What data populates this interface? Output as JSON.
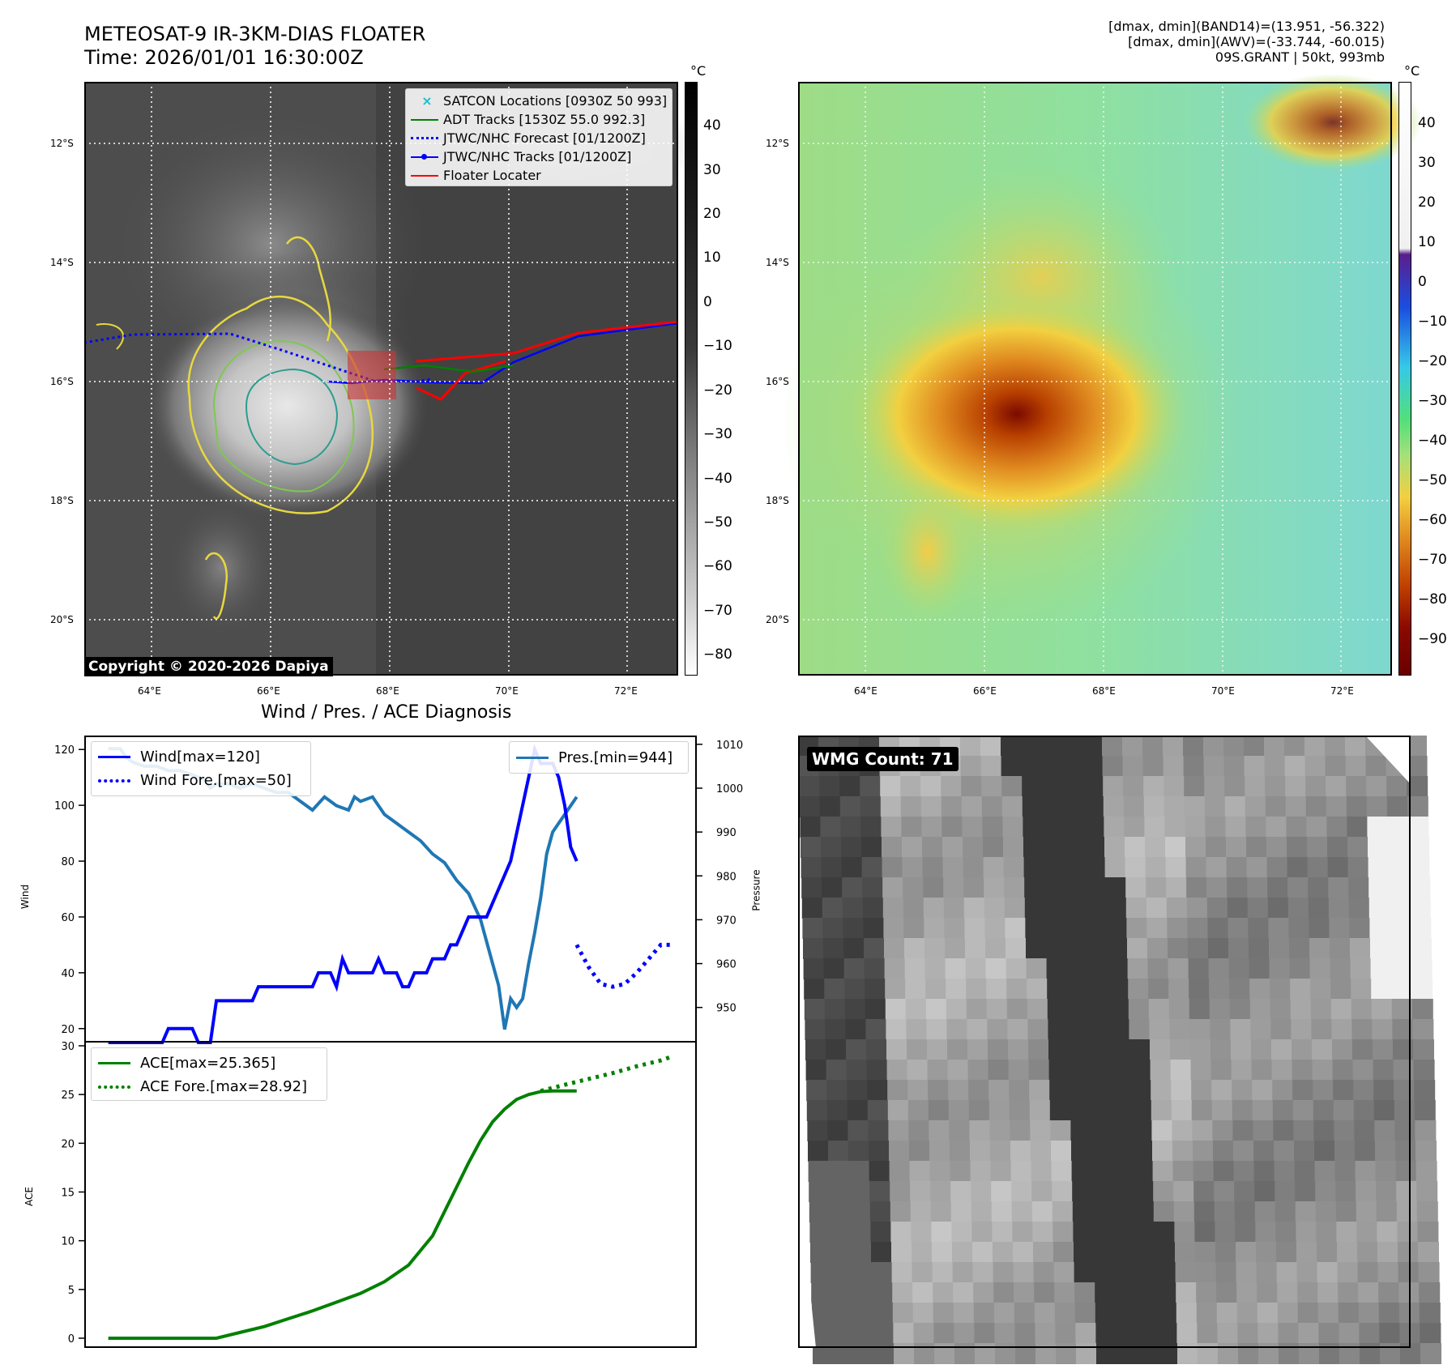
{
  "header": {
    "title_line1": "METEOSAT-9 IR-3KM-DIAS FLOATER",
    "title_line2": "Time: 2026/01/01 16:30:00Z",
    "info_line1": "[dmax, dmin](BAND14)=(13.951, -56.322)",
    "info_line2": "[dmax, dmin](AWV)=(-33.744, -60.015)",
    "info_line3": "09S.GRANT | 50kt, 993mb"
  },
  "map": {
    "lat_labels": [
      "12°S",
      "14°S",
      "16°S",
      "18°S",
      "20°S"
    ],
    "lon_labels": [
      "64°E",
      "66°E",
      "68°E",
      "70°E",
      "72°E"
    ],
    "copyright": "Copyright © 2020-2026 Dapiya",
    "legend": [
      {
        "label": "SATCON Locations [0930Z 50 993]",
        "color": "#17becf",
        "style": "x"
      },
      {
        "label": "ADT Tracks [1530Z 55.0 992.3]",
        "color": "#008000",
        "style": "line"
      },
      {
        "label": "JTWC/NHC Forecast [01/1200Z]",
        "color": "#0000ff",
        "style": "dotted"
      },
      {
        "label": "JTWC/NHC Tracks [01/1200Z]",
        "color": "#0000ff",
        "style": "line-dot"
      },
      {
        "label": "Floater Locater",
        "color": "#ff0000",
        "style": "line"
      }
    ]
  },
  "colorbar_ir": {
    "unit": "°C",
    "ticks": [
      "40",
      "30",
      "20",
      "10",
      "0",
      "−10",
      "−20",
      "−30",
      "−40",
      "−50",
      "−60",
      "−70",
      "−80"
    ]
  },
  "colorbar_wv": {
    "unit": "°C",
    "ticks": [
      "40",
      "30",
      "20",
      "10",
      "0",
      "−10",
      "−20",
      "−30",
      "−40",
      "−50",
      "−60",
      "−70",
      "−80",
      "−90"
    ]
  },
  "diag": {
    "title": "Wind / Pres. / ACE Diagnosis",
    "wind_ylabel": "Wind",
    "pres_ylabel": "Pressure",
    "ace_ylabel": "ACE",
    "wind_legend": [
      "Wind[max=120]",
      "Wind Fore.[max=50]"
    ],
    "pres_legend": "Pres.[min=944]",
    "ace_legend": [
      "ACE[max=25.365]",
      "ACE Fore.[max=28.92]"
    ],
    "wind_ticks": [
      "120",
      "100",
      "80",
      "60",
      "40",
      "20"
    ],
    "pres_ticks": [
      "1010",
      "1000",
      "990",
      "980",
      "970",
      "960",
      "950"
    ],
    "ace_ticks": [
      "30",
      "25",
      "20",
      "15",
      "10",
      "5",
      "0"
    ]
  },
  "wmg": {
    "label": "WMG Count: 71"
  },
  "chart_data": [
    {
      "type": "line",
      "title": "Wind / Pres. / ACE Diagnosis",
      "ylabel": "Wind",
      "ylim": [
        15,
        125
      ],
      "series": [
        {
          "name": "Wind[max=120]",
          "color": "#0000ff",
          "style": "solid",
          "x": [
            0,
            1,
            2,
            3,
            4,
            5,
            6,
            7,
            8,
            9,
            10,
            11,
            12,
            13,
            14,
            15,
            16,
            17,
            18,
            19,
            20,
            21,
            22,
            23,
            24,
            25,
            26,
            27,
            28,
            29,
            30,
            31,
            32,
            33,
            34,
            35,
            36,
            37,
            38,
            39,
            40,
            41,
            42,
            43,
            44,
            45,
            46,
            47,
            48,
            49,
            50,
            51,
            52,
            53,
            54,
            55,
            56,
            57,
            58,
            59,
            60,
            61,
            62,
            63,
            64,
            65,
            66,
            67,
            68,
            69,
            70,
            71,
            72,
            73,
            74,
            75,
            76,
            77,
            78
          ],
          "y": [
            15,
            15,
            15,
            15,
            15,
            15,
            15,
            15,
            15,
            15,
            20,
            20,
            20,
            20,
            20,
            15,
            15,
            15,
            30,
            30,
            30,
            30,
            30,
            30,
            30,
            35,
            35,
            35,
            35,
            35,
            35,
            35,
            35,
            35,
            35,
            40,
            40,
            40,
            35,
            45,
            40,
            40,
            40,
            40,
            40,
            45,
            40,
            40,
            40,
            35,
            35,
            40,
            40,
            40,
            45,
            45,
            45,
            50,
            50,
            55,
            60,
            60,
            60,
            60,
            65,
            70,
            75,
            80,
            90,
            100,
            110,
            120,
            115,
            115,
            115,
            110,
            100,
            85,
            80
          ]
        },
        {
          "name": "Wind Fore.[max=50]",
          "color": "#0000ff",
          "style": "dotted",
          "x": [
            78,
            80,
            82,
            84,
            86,
            88,
            90,
            92,
            94
          ],
          "y": [
            50,
            42,
            36,
            35,
            36,
            40,
            45,
            50,
            50
          ]
        }
      ]
    },
    {
      "type": "line",
      "ylabel": "Pressure",
      "ylim": [
        942,
        1012
      ],
      "series": [
        {
          "name": "Pres.[min=944]",
          "color": "#1f77b4",
          "x": [
            0,
            2,
            3,
            4,
            6,
            8,
            10,
            12,
            14,
            16,
            17,
            18,
            20,
            22,
            24,
            26,
            28,
            30,
            32,
            34,
            36,
            38,
            40,
            41,
            42,
            44,
            46,
            48,
            50,
            52,
            54,
            56,
            58,
            60,
            62,
            64,
            65,
            66,
            67,
            68,
            69,
            70,
            71,
            72,
            73,
            74,
            75,
            76,
            77,
            78
          ],
          "y": [
            1009,
            1009,
            1007,
            1006,
            1005,
            1005,
            1004,
            1004,
            1003,
            1002,
            1000,
            1001,
            1001,
            1000,
            1001,
            1000,
            999,
            999,
            997,
            995,
            998,
            996,
            995,
            998,
            997,
            998,
            994,
            992,
            990,
            988,
            985,
            983,
            979,
            976,
            970,
            960,
            955,
            945,
            952,
            950,
            952,
            960,
            967,
            975,
            985,
            990,
            992,
            994,
            996,
            998
          ]
        }
      ]
    },
    {
      "type": "line",
      "ylabel": "ACE",
      "ylim": [
        -1,
        30.5
      ],
      "series": [
        {
          "name": "ACE[max=25.365]",
          "color": "#008000",
          "style": "solid",
          "x": [
            0,
            10,
            18,
            22,
            26,
            30,
            34,
            38,
            42,
            46,
            50,
            54,
            56,
            58,
            60,
            62,
            64,
            66,
            68,
            70,
            72,
            74,
            76,
            78
          ],
          "y": [
            0,
            0,
            0,
            0.6,
            1.2,
            2.0,
            2.8,
            3.7,
            4.6,
            5.8,
            7.5,
            10.5,
            13.0,
            15.5,
            18.0,
            20.3,
            22.2,
            23.5,
            24.5,
            25.0,
            25.3,
            25.365,
            25.365,
            25.365
          ]
        },
        {
          "name": "ACE Fore.[max=28.92]",
          "color": "#008000",
          "style": "dotted",
          "x": [
            72,
            76,
            80,
            84,
            88,
            92,
            94
          ],
          "y": [
            25.365,
            26.0,
            26.6,
            27.2,
            27.9,
            28.5,
            28.92
          ]
        }
      ]
    }
  ]
}
